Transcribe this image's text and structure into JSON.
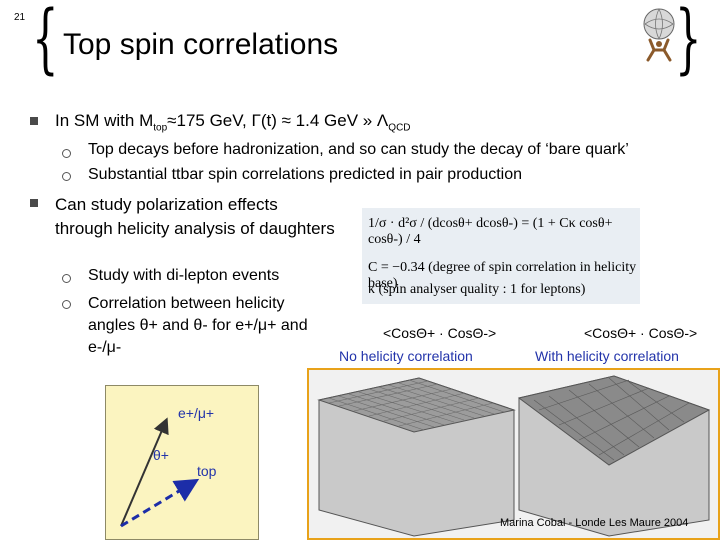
{
  "slide": {
    "number": "21",
    "title": "Top spin correlations",
    "footer": "Marina Cobal -  Londe Les Maure 2004"
  },
  "bullets": {
    "b1_text": "In SM with M",
    "b1_sub": "top",
    "b1_rest": "≈175 GeV, Γ(t) ≈ 1.4 GeV » Λ",
    "b1_sub2": "QCD",
    "b1_sub_items": [
      "Top decays before hadronization, and so can study the decay of ‘bare quark’",
      "Substantial ttbar spin correlations predicted in pair production"
    ],
    "b2_text": "Can study polarization effects through helicity analysis of daughters",
    "b2_sub_items": [
      "Study with di-lepton events",
      "Correlation between helicity angles θ+ and θ- for e+/μ+ and e-/μ-"
    ]
  },
  "formula": {
    "lhs": "1/σ · d²σ / (dcosθ+ dcosθ-) = (1 + Cκ cosθ+ cosθ-) / 4",
    "c_line": "C = −0.34    (degree of spin correlation in helicity base)",
    "kappa_line": "κ        (spin analyser quality : 1 for leptons)"
  },
  "plots": {
    "left_heading": "<CosΘ+ · CosΘ->",
    "left_caption": "No helicity correlation",
    "right_heading": "<CosΘ+ · CosΘ->",
    "right_caption": "With helicity correlation"
  },
  "helicity_diagram": {
    "lepton_label": "e+/μ+",
    "angle_label": "θ+",
    "top_label": "top"
  },
  "colors": {
    "accent_blue": "#2233aa",
    "frame_orange": "#e8a21a",
    "box_yellow": "#fbf4c0"
  }
}
